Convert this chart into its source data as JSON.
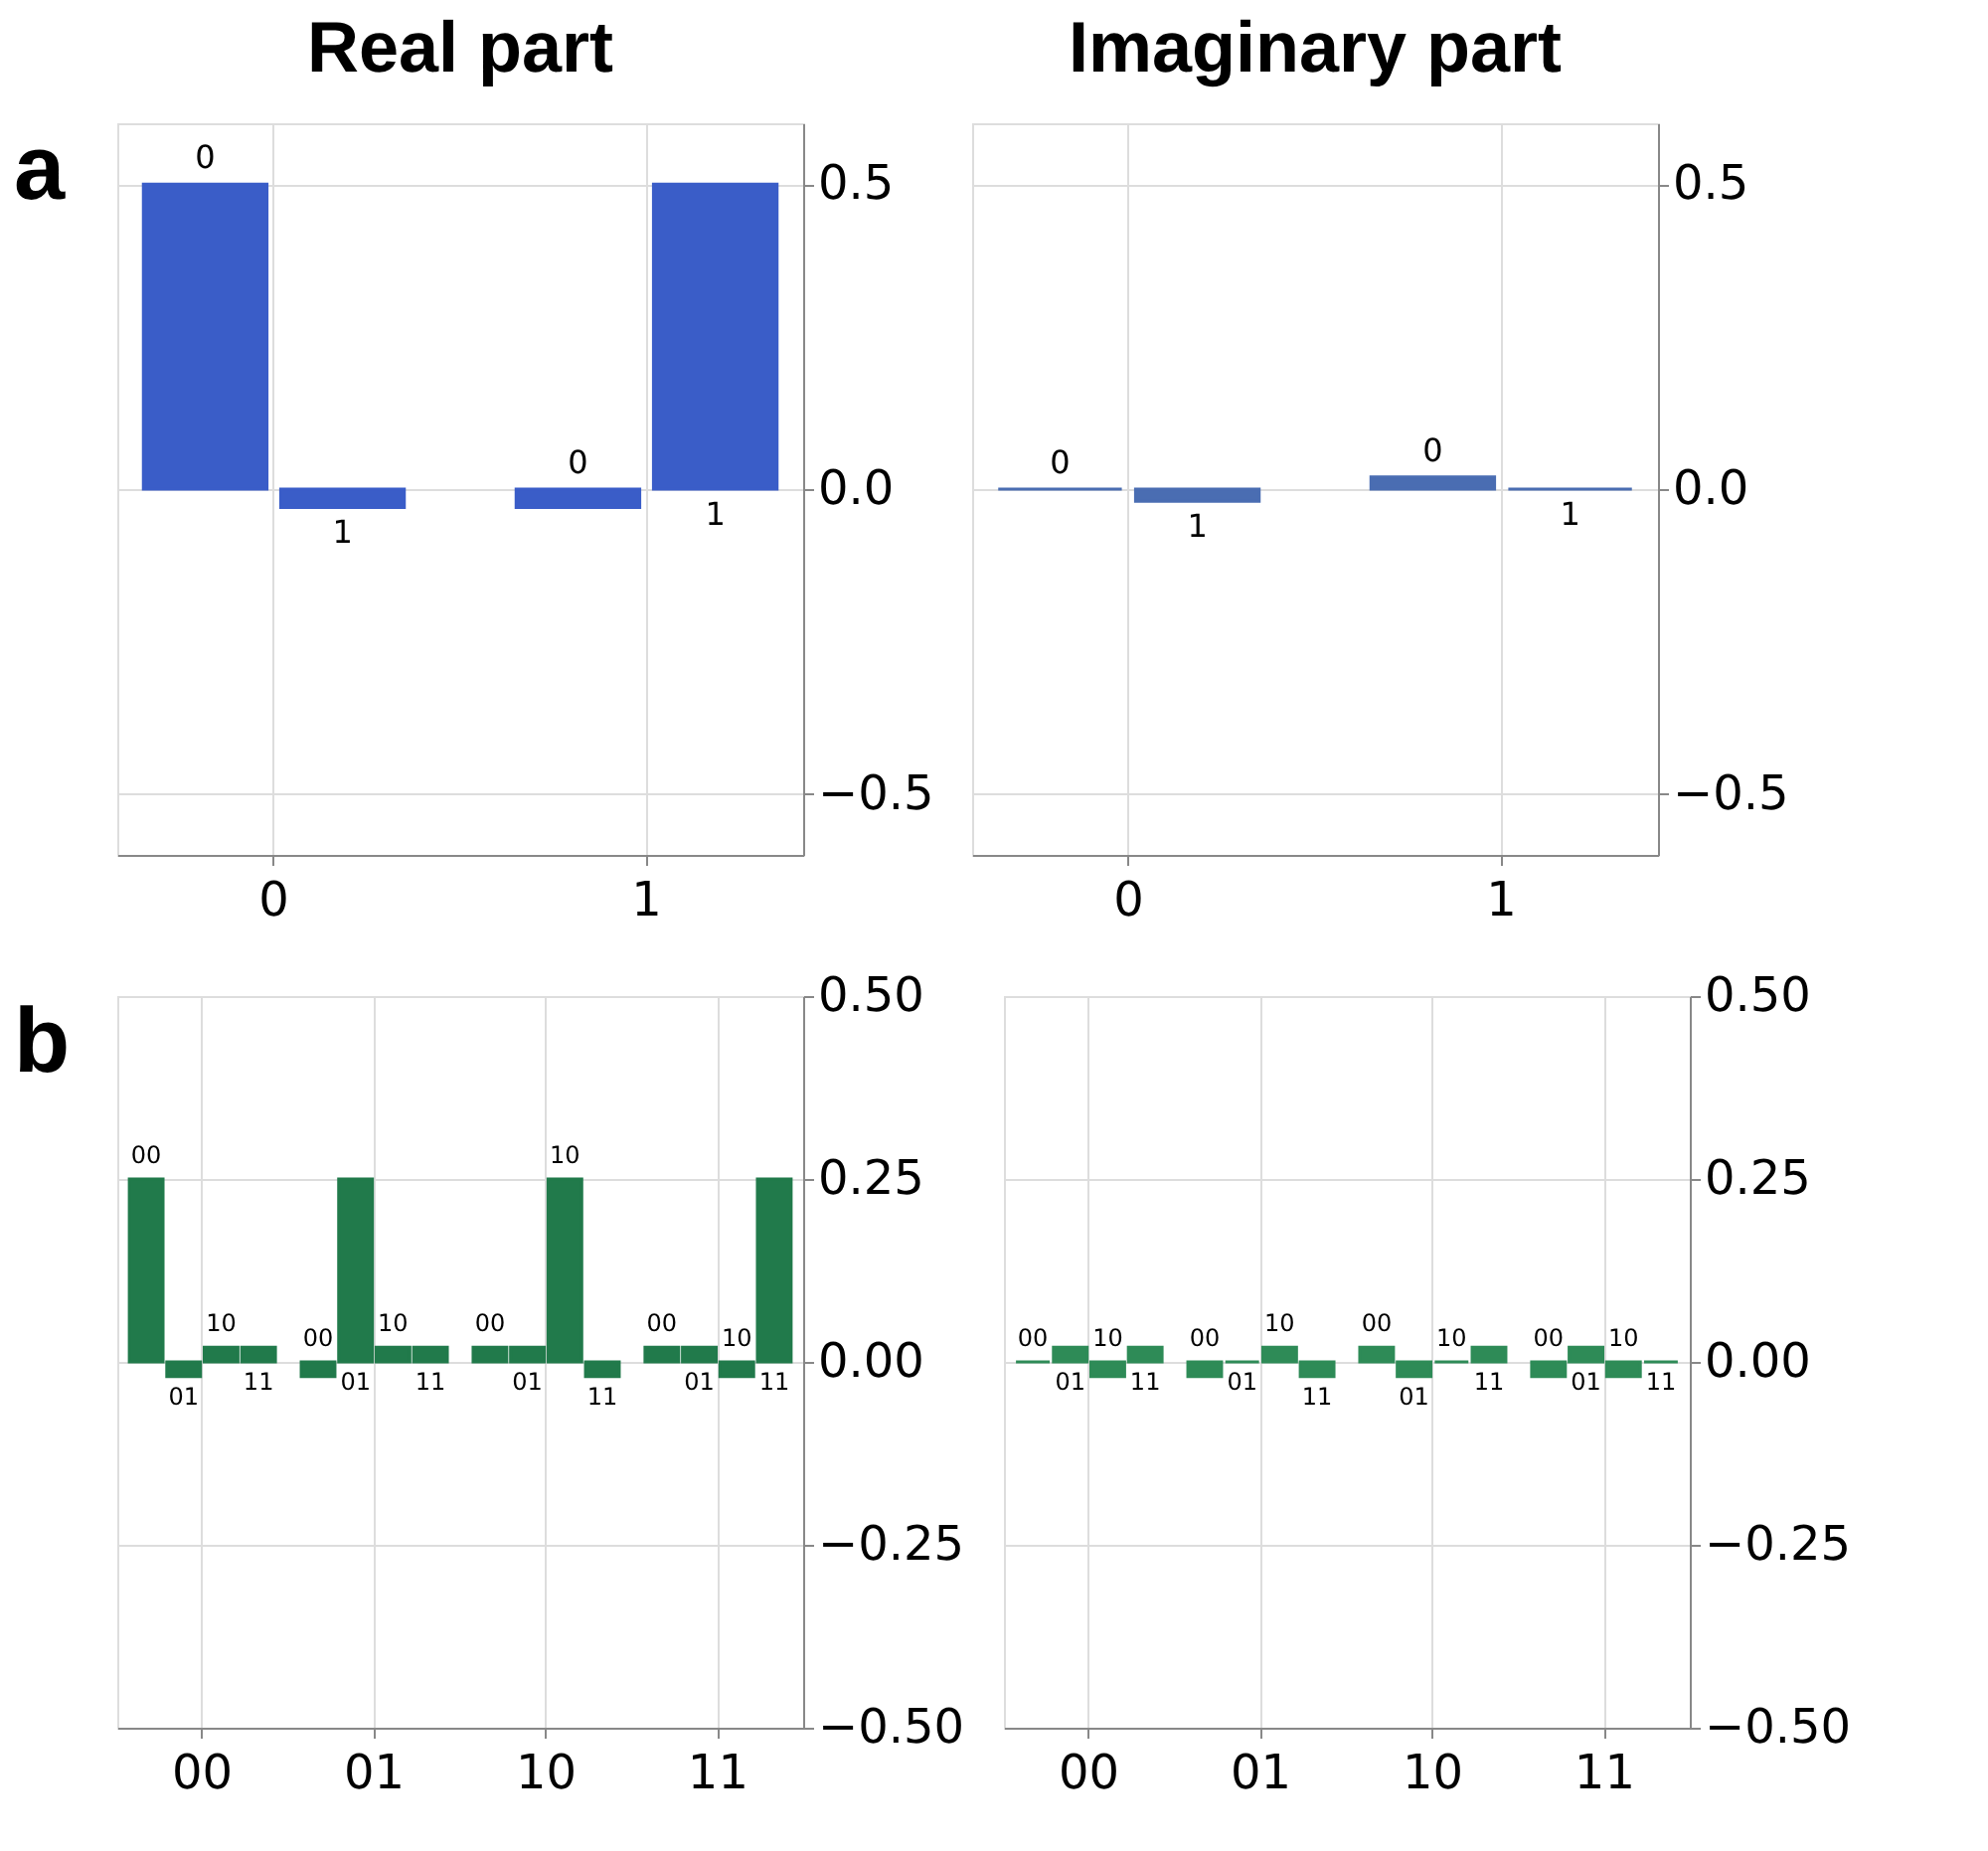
{
  "chart_data": [
    {
      "type": "bar",
      "title": "Real part",
      "annotations": [
        "a"
      ],
      "categories": [
        "0",
        "1"
      ],
      "series": [
        {
          "name": "0",
          "color": "#3a5dc8",
          "values": [
            0.5,
            -0.03
          ]
        },
        {
          "name": "1",
          "color": "#3a5dc8",
          "values": [
            -0.03,
            0.5
          ]
        }
      ],
      "ylim": [
        -0.6,
        0.6
      ],
      "yticks": [
        {
          "value": -0.5,
          "label": "−0.5"
        },
        {
          "value": 0,
          "label": "0.0"
        },
        {
          "value": 0.5,
          "label": "0.5"
        }
      ],
      "grid": true
    },
    {
      "type": "bar",
      "title": "Imaginary part",
      "categories": [
        "0",
        "1"
      ],
      "series": [
        {
          "name": "0",
          "color": "#4a6db2",
          "values": [
            0,
            0.02
          ]
        },
        {
          "name": "1",
          "color": "#4a6db2",
          "values": [
            -0.02,
            0
          ]
        }
      ],
      "ylim": [
        -0.6,
        0.6
      ],
      "yticks": [
        {
          "value": -0.5,
          "label": "−0.5"
        },
        {
          "value": 0,
          "label": "0.0"
        },
        {
          "value": 0.5,
          "label": "0.5"
        }
      ],
      "grid": true
    },
    {
      "type": "bar",
      "annotations": [
        "b"
      ],
      "categories": [
        "00",
        "01",
        "10",
        "11"
      ],
      "series": [
        {
          "name": "00",
          "color": "#217a4b",
          "values": [
            0.25,
            -0.02,
            0.02,
            0.02
          ]
        },
        {
          "name": "01",
          "color": "#217a4b",
          "values": [
            -0.02,
            0.25,
            0.02,
            0.02
          ]
        },
        {
          "name": "10",
          "color": "#217a4b",
          "values": [
            0.02,
            0.02,
            0.25,
            -0.02
          ]
        },
        {
          "name": "11",
          "color": "#217a4b",
          "values": [
            0.02,
            0.02,
            -0.02,
            0.25
          ]
        }
      ],
      "ylim": [
        -0.5,
        0.5
      ],
      "yticks": [
        {
          "value": -0.5,
          "label": "−0.50"
        },
        {
          "value": -0.25,
          "label": "−0.25"
        },
        {
          "value": 0,
          "label": "0.00"
        },
        {
          "value": 0.25,
          "label": "0.25"
        },
        {
          "value": 0.5,
          "label": "0.50"
        }
      ],
      "grid": true
    },
    {
      "type": "bar",
      "categories": [
        "00",
        "01",
        "10",
        "11"
      ],
      "series": [
        {
          "name": "00",
          "color": "#2e8b57",
          "values": [
            0,
            -0.02,
            0.02,
            -0.02
          ]
        },
        {
          "name": "01",
          "color": "#2e8b57",
          "values": [
            0.02,
            0,
            -0.02,
            0.02
          ]
        },
        {
          "name": "10",
          "color": "#2e8b57",
          "values": [
            -0.02,
            0.02,
            0,
            -0.02
          ]
        },
        {
          "name": "11",
          "color": "#2e8b57",
          "values": [
            0.02,
            -0.02,
            0.02,
            0
          ]
        }
      ],
      "ylim": [
        -0.5,
        0.5
      ],
      "yticks": [
        {
          "value": -0.5,
          "label": "−0.50"
        },
        {
          "value": -0.25,
          "label": "−0.25"
        },
        {
          "value": 0,
          "label": "0.00"
        },
        {
          "value": 0.25,
          "label": "0.25"
        },
        {
          "value": 0.5,
          "label": "0.50"
        }
      ],
      "grid": true
    }
  ]
}
